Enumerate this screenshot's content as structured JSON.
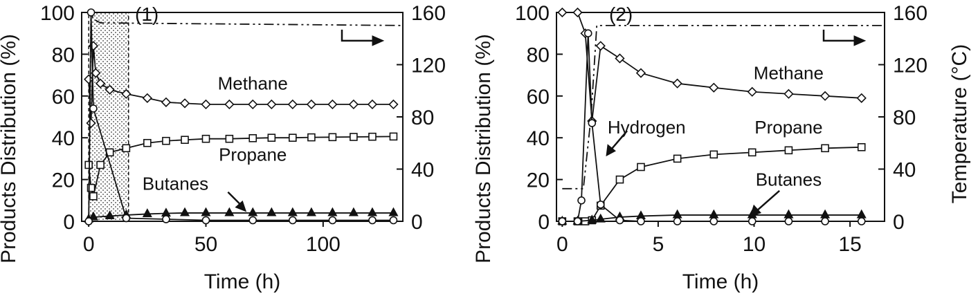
{
  "chart_data": [
    {
      "type": "line",
      "panel_label": "(1)",
      "xlabel": "Time (h)",
      "ylabel": "Products Distribution (%)",
      "y2label": "",
      "xlim": [
        -3,
        134
      ],
      "ylim": [
        0,
        100
      ],
      "y2lim": [
        0,
        160
      ],
      "xticks": [
        0,
        50,
        100
      ],
      "yticks": [
        0,
        20,
        40,
        60,
        80,
        100
      ],
      "y2ticks": [
        0,
        40,
        80,
        120,
        160
      ],
      "shaded_region": {
        "x": [
          0,
          17
        ],
        "y": [
          0,
          100
        ]
      },
      "temperature": {
        "axis": "right",
        "x": [
          0,
          1,
          2,
          5,
          134
        ],
        "y": [
          0,
          160,
          155,
          152,
          150
        ]
      },
      "series": [
        {
          "name": "Methane",
          "marker": "diamond",
          "label": {
            "text": "Methane",
            "x": 70,
            "y": 63
          },
          "x": [
            0,
            1,
            2,
            3,
            5,
            9,
            16,
            25,
            33,
            41,
            50,
            60,
            70,
            78,
            87,
            95,
            104,
            113,
            121,
            130
          ],
          "y": [
            68,
            47,
            84,
            71,
            66,
            63,
            61,
            59,
            57,
            56.5,
            56,
            56,
            56,
            56,
            56,
            56,
            56,
            56,
            56,
            56
          ]
        },
        {
          "name": "Propane",
          "marker": "square",
          "label": {
            "text": "Propane",
            "x": 70,
            "y": 29
          },
          "x": [
            0,
            1,
            2,
            5,
            9,
            16,
            25,
            33,
            41,
            50,
            60,
            70,
            78,
            87,
            95,
            104,
            113,
            121,
            130
          ],
          "y": [
            27,
            16,
            12,
            27,
            33,
            35,
            37.5,
            38.5,
            39,
            39.5,
            39.5,
            39.8,
            40,
            40,
            40.2,
            40.3,
            40.4,
            40.5,
            40.6
          ]
        },
        {
          "name": "Butanes",
          "marker": "triangle",
          "label": {
            "text": "Butanes",
            "x": 37,
            "y": 15
          },
          "x": [
            0,
            2,
            9,
            16,
            25,
            33,
            41,
            50,
            60,
            70,
            78,
            87,
            95,
            104,
            113,
            121,
            130
          ],
          "y": [
            1,
            2,
            2.5,
            3,
            3.5,
            3.8,
            4,
            4,
            4,
            4,
            4,
            4,
            4,
            4,
            4,
            4,
            4
          ]
        },
        {
          "name": "Hydrogen",
          "marker": "circle",
          "label": {
            "text": "",
            "x": 0,
            "y": 0
          },
          "x": [
            0,
            1,
            2,
            16,
            33,
            50,
            70,
            87,
            104,
            121,
            130
          ],
          "y": [
            0,
            100,
            54,
            1.5,
            1,
            0.5,
            0.5,
            0.5,
            0.5,
            0.5,
            0.5
          ]
        }
      ]
    },
    {
      "type": "line",
      "panel_label": "(2)",
      "xlabel": "Time (h)",
      "ylabel": "Products Distribution (%)",
      "y2label": "Temperature (°C)",
      "xlim": [
        -0.3,
        16.8
      ],
      "ylim": [
        0,
        100
      ],
      "y2lim": [
        0,
        160
      ],
      "xticks": [
        0,
        5,
        10,
        15
      ],
      "yticks": [
        0,
        20,
        40,
        60,
        80,
        100
      ],
      "y2ticks": [
        0,
        40,
        80,
        120,
        160
      ],
      "temperature": {
        "axis": "right",
        "x": [
          0,
          1.1,
          1.5,
          1.8,
          2.2,
          16.8
        ],
        "y": [
          25,
          25,
          80,
          150,
          150,
          150
        ]
      },
      "series": [
        {
          "name": "Methane",
          "marker": "diamond",
          "label": {
            "text": "Methane",
            "x": 11.8,
            "y": 68
          },
          "x": [
            0,
            0.8,
            1.2,
            1.55,
            2.0,
            3.0,
            4.1,
            6.0,
            7.9,
            9.9,
            11.8,
            13.7,
            15.6
          ],
          "y": [
            100,
            100,
            90,
            48,
            84,
            78,
            71,
            66,
            64,
            62,
            61,
            60,
            59
          ]
        },
        {
          "name": "Propane",
          "marker": "square",
          "label": {
            "text": "Propane",
            "x": 11.8,
            "y": 42
          },
          "x": [
            0,
            0.8,
            1.2,
            1.55,
            2.0,
            3.0,
            4.1,
            6.0,
            7.9,
            9.9,
            11.8,
            13.7,
            15.6
          ],
          "y": [
            0,
            0,
            0,
            0.5,
            7.5,
            20,
            26,
            30,
            32,
            33,
            34,
            35,
            35.5
          ]
        },
        {
          "name": "Butanes",
          "marker": "triangle",
          "label": {
            "text": "Butanes",
            "x": 11.8,
            "y": 17
          },
          "x": [
            0,
            0.8,
            1.55,
            2.0,
            3.0,
            4.1,
            6.0,
            7.9,
            9.9,
            11.8,
            13.7,
            15.6
          ],
          "y": [
            0,
            0,
            0.5,
            1,
            2,
            2.5,
            3,
            3,
            3,
            3,
            3,
            3
          ]
        },
        {
          "name": "Hydrogen",
          "marker": "circle",
          "label": {
            "text": "Hydrogen",
            "x": 4.4,
            "y": 42
          },
          "x": [
            0,
            0.8,
            1.0,
            1.35,
            1.55,
            2.0,
            3.0,
            4.1,
            6.0,
            7.9,
            9.9,
            11.8,
            13.7,
            15.6
          ],
          "y": [
            0,
            0,
            10,
            90,
            47,
            8,
            0.5,
            0,
            0,
            0,
            0,
            0,
            0,
            0
          ]
        }
      ]
    }
  ]
}
